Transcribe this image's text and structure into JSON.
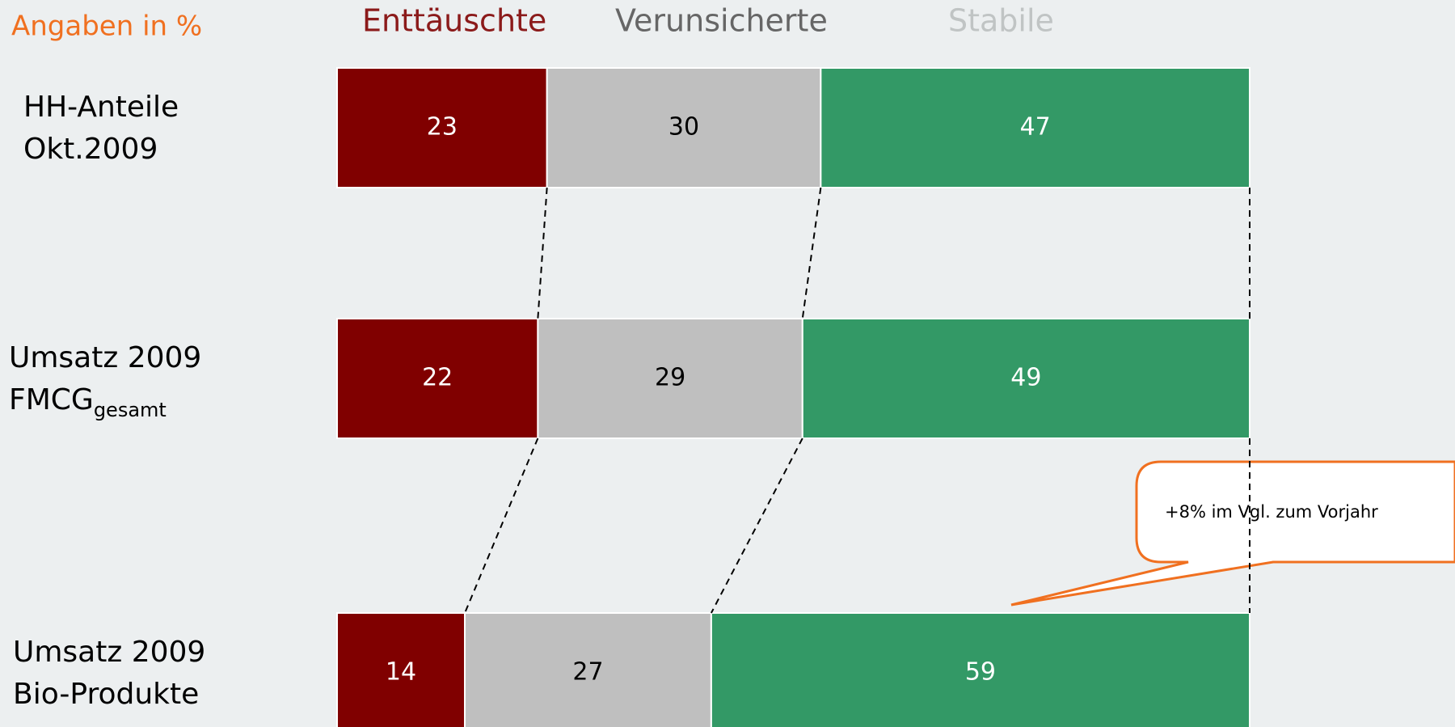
{
  "chart_data": {
    "type": "stacked_bar_horizontal",
    "unit_label": "Angaben in %",
    "categories": [
      [
        "HH-Anteile",
        "Okt.2009"
      ],
      [
        "Umsatz 2009",
        {
          "text": "FMCG",
          "sub": "gesamt"
        }
      ],
      [
        "Umsatz 2009",
        "Bio-Produkte"
      ]
    ],
    "series": [
      {
        "name": "Enttäuschte",
        "color": "#800000",
        "legend_color": "#8b1a1a",
        "label_color": "#ffffff",
        "values": [
          23,
          22,
          14
        ]
      },
      {
        "name": "Verunsicherte",
        "color": "#bfbfbf",
        "legend_color": "#666666",
        "label_color": "#000000",
        "values": [
          30,
          29,
          27
        ]
      },
      {
        "name": "Stabile",
        "color": "#339966",
        "legend_color": "#c0c4c4",
        "label_color": "#ffffff",
        "values": [
          47,
          49,
          59
        ]
      }
    ],
    "xlim": [
      0,
      100
    ],
    "annotation": "+8% im Vgl. zum Vorjahr"
  }
}
